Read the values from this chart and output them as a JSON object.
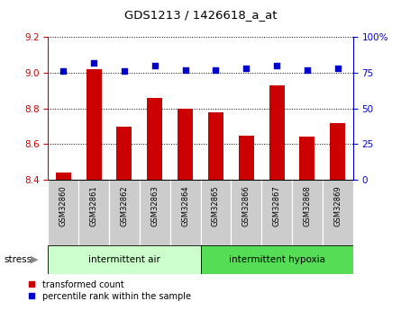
{
  "title": "GDS1213 / 1426618_a_at",
  "samples": [
    "GSM32860",
    "GSM32861",
    "GSM32862",
    "GSM32863",
    "GSM32864",
    "GSM32865",
    "GSM32866",
    "GSM32867",
    "GSM32868",
    "GSM32869"
  ],
  "bar_values": [
    8.44,
    9.02,
    8.7,
    8.86,
    8.8,
    8.78,
    8.65,
    8.93,
    8.64,
    8.72
  ],
  "dot_values": [
    76,
    82,
    76,
    80,
    77,
    77,
    78,
    80,
    77,
    78
  ],
  "bar_color": "#cc0000",
  "dot_color": "#0000cc",
  "ylim_left": [
    8.4,
    9.2
  ],
  "ylim_right": [
    0,
    100
  ],
  "yticks_left": [
    8.4,
    8.6,
    8.8,
    9.0,
    9.2
  ],
  "yticks_right": [
    0,
    25,
    50,
    75,
    100
  ],
  "group1_label": "intermittent air",
  "group2_label": "intermittent hypoxia",
  "group1_count": 5,
  "group2_count": 5,
  "stress_label": "stress",
  "legend_bar_label": "transformed count",
  "legend_dot_label": "percentile rank within the sample",
  "group_bg_color1": "#ccffcc",
  "group_bg_color2": "#55dd55",
  "tick_bg_color": "#cccccc",
  "bg_color": "#ffffff"
}
